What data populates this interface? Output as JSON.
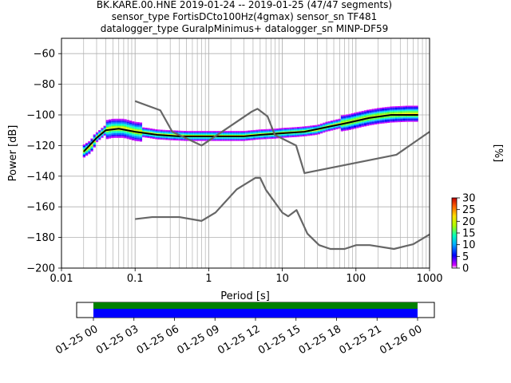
{
  "chart_data": [
    {
      "type": "heatmap",
      "title_lines": [
        "BK.KARE.00.HNE   2019-01-24 -- 2019-01-25  (47/47 segments)",
        "sensor_type FortisDCto100Hz(4gmax) sensor_sn TF481",
        "datalogger_type GuralpMinimus+ datalogger_sn MINP-DF59"
      ],
      "xlabel": "Period [s]",
      "ylabel": "Power [dB]",
      "xscale": "log",
      "xlim": [
        0.01,
        1000
      ],
      "ylim": [
        -200,
        -50
      ],
      "x_ticks": [
        {
          "value": 0.01,
          "label": "0.01"
        },
        {
          "value": 0.1,
          "label": "0.1"
        },
        {
          "value": 1,
          "label": "1"
        },
        {
          "value": 10,
          "label": "10"
        },
        {
          "value": 100,
          "label": "100"
        },
        {
          "value": 1000,
          "label": "1000"
        }
      ],
      "y_ticks": [
        {
          "value": -60,
          "label": "−60"
        },
        {
          "value": -80,
          "label": "−80"
        },
        {
          "value": -100,
          "label": "−100"
        },
        {
          "value": -120,
          "label": "−120"
        },
        {
          "value": -140,
          "label": "−140"
        },
        {
          "value": -160,
          "label": "−160"
        },
        {
          "value": -180,
          "label": "−180"
        },
        {
          "value": -200,
          "label": "−200"
        }
      ],
      "grid": true,
      "colorbar": {
        "label": "[%]",
        "range": [
          0,
          30
        ],
        "ticks": [
          "0",
          "5",
          "10",
          "15",
          "20",
          "25",
          "30"
        ]
      },
      "noise_models": [
        {
          "points": [
            [
              0.1,
              -91
            ],
            [
              0.22,
              -97
            ],
            [
              0.32,
              -111
            ],
            [
              0.8,
              -120
            ],
            [
              3.8,
              -98
            ],
            [
              4.6,
              -96
            ],
            [
              6.3,
              -101
            ],
            [
              7.9,
              -113
            ],
            [
              15.4,
              -120
            ],
            [
              20,
              -138
            ],
            [
              354.8,
              -126
            ],
            [
              1000,
              -111
            ]
          ]
        },
        {
          "points": [
            [
              0.1,
              -168
            ],
            [
              0.17,
              -166.7
            ],
            [
              0.4,
              -166.7
            ],
            [
              0.8,
              -169.2
            ],
            [
              1.24,
              -163.7
            ],
            [
              2.4,
              -148.6
            ],
            [
              4.3,
              -141.1
            ],
            [
              5,
              -141.1
            ],
            [
              6,
              -149
            ],
            [
              10,
              -163.8
            ],
            [
              12,
              -166.2
            ],
            [
              15.6,
              -162.1
            ],
            [
              21.9,
              -177.5
            ],
            [
              31.6,
              -185
            ],
            [
              45,
              -187.5
            ],
            [
              70,
              -187.5
            ],
            [
              101,
              -185
            ],
            [
              154,
              -185
            ],
            [
              328,
              -187.5
            ],
            [
              600,
              -184.4
            ],
            [
              1000,
              -178
            ]
          ]
        }
      ],
      "mode_line": {
        "points": [
          [
            0.02,
            -124
          ],
          [
            0.03,
            -115
          ],
          [
            0.04,
            -110
          ],
          [
            0.06,
            -109
          ],
          [
            0.1,
            -111
          ],
          [
            0.2,
            -113
          ],
          [
            0.4,
            -114
          ],
          [
            1,
            -114
          ],
          [
            3,
            -114
          ],
          [
            5,
            -113
          ],
          [
            10,
            -112
          ],
          [
            20,
            -111
          ],
          [
            40,
            -108
          ],
          [
            80,
            -105
          ],
          [
            150,
            -102
          ],
          [
            300,
            -100
          ],
          [
            700,
            -100
          ]
        ]
      },
      "density_band": {
        "points": [
          [
            0.02,
            -124
          ],
          [
            0.025,
            -121
          ],
          [
            0.03,
            -115
          ],
          [
            0.04,
            -110
          ],
          [
            0.05,
            -109
          ],
          [
            0.07,
            -109
          ],
          [
            0.1,
            -111
          ],
          [
            0.15,
            -112
          ],
          [
            0.2,
            -113
          ],
          [
            0.3,
            -113.5
          ],
          [
            0.5,
            -114
          ],
          [
            1,
            -114
          ],
          [
            2,
            -114
          ],
          [
            3,
            -114
          ],
          [
            5,
            -113
          ],
          [
            8,
            -112.5
          ],
          [
            10,
            -112
          ],
          [
            15,
            -111.5
          ],
          [
            20,
            -111
          ],
          [
            30,
            -110
          ],
          [
            40,
            -108
          ],
          [
            60,
            -106
          ],
          [
            80,
            -105
          ],
          [
            120,
            -103
          ],
          [
            150,
            -102
          ],
          [
            200,
            -101
          ],
          [
            300,
            -100
          ],
          [
            500,
            -99.5
          ],
          [
            700,
            -99.5
          ]
        ]
      }
    },
    {
      "type": "timeline",
      "x_ticks": [
        "01-25 00",
        "01-25 03",
        "01-25 06",
        "01-25 09",
        "01-25 12",
        "01-25 15",
        "01-25 18",
        "01-25 21",
        "01-26 00"
      ],
      "colors": {
        "coverage": "#0000ff",
        "data": "#008000"
      }
    }
  ]
}
